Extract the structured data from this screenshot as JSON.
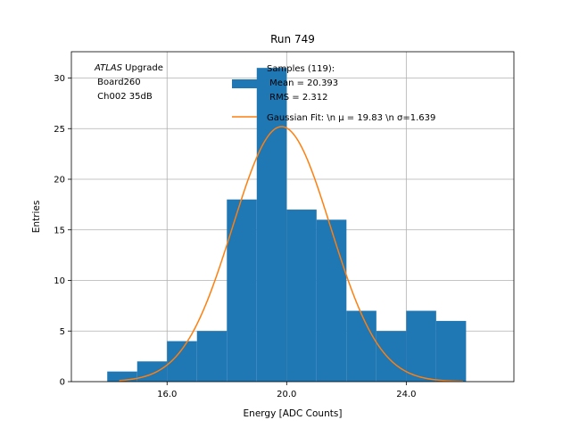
{
  "chart_data": {
    "type": "bar",
    "title": "Run 749",
    "xlabel": "Energy [ADC Counts]",
    "ylabel": "Entries",
    "xlim": [
      12.8,
      27.6
    ],
    "ylim": [
      0,
      32.6
    ],
    "grid": true,
    "x_ticks": [
      {
        "value": 16,
        "label": "16.0"
      },
      {
        "value": 20,
        "label": "20.0"
      },
      {
        "value": 24,
        "label": "24.0"
      }
    ],
    "y_ticks": [
      {
        "value": 0,
        "label": "0"
      },
      {
        "value": 5,
        "label": "5"
      },
      {
        "value": 10,
        "label": "10"
      },
      {
        "value": 15,
        "label": "15"
      },
      {
        "value": 20,
        "label": "20"
      },
      {
        "value": 25,
        "label": "25"
      },
      {
        "value": 30,
        "label": "30"
      }
    ],
    "bin_edges": [
      14.0,
      15.0,
      16.0,
      17.0,
      18.0,
      19.0,
      20.0,
      21.0,
      22.0,
      23.0,
      24.0,
      25.0,
      26.0
    ],
    "counts": [
      1,
      2,
      4,
      5,
      18,
      31,
      17,
      16,
      7,
      5,
      7,
      6
    ],
    "bar_color": "#1f77b4",
    "fit": {
      "mu": 19.83,
      "sigma": 1.639,
      "amplitude": 25.2,
      "x_range": [
        14.4,
        25.9
      ],
      "color": "#ff7f0e"
    },
    "annotation": {
      "italic": "ATLAS",
      "rest": " Upgrade",
      "line2": " Board260",
      "line3": " Ch002 35dB"
    },
    "legend": {
      "placement": "top-center",
      "hist_lines": [
        "Samples (119):",
        " Mean = 20.393",
        " RMS = 2.312"
      ],
      "fit_label": "Gaussian Fit: \\n μ = 19.83 \\n σ=1.639"
    }
  }
}
